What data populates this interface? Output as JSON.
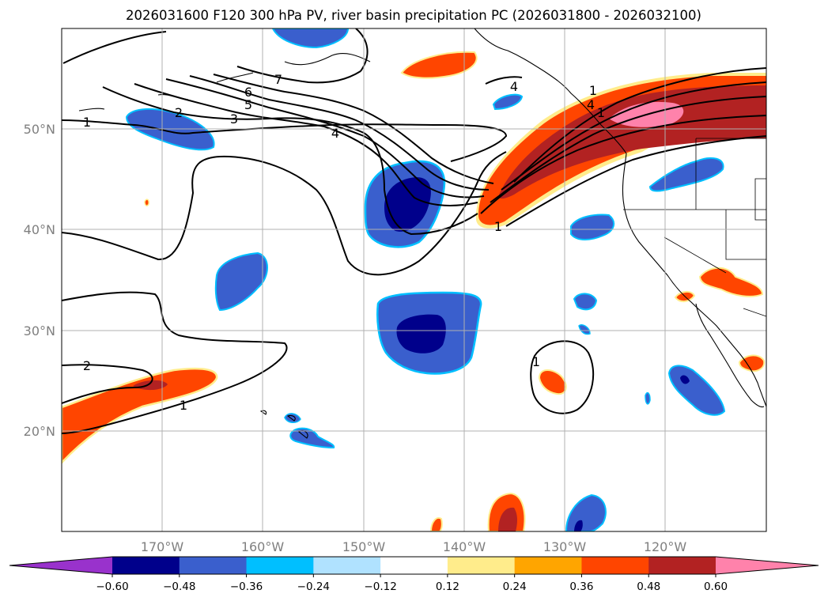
{
  "figure": {
    "title": "2026031600 F120 300 hPa PV, river basin precipitation PC (2026031800 - 2026032100)"
  },
  "map": {
    "lon_range": [
      -180,
      -110
    ],
    "lat_range": [
      10,
      60
    ],
    "longitude_labels": [
      "170°W",
      "160°W",
      "150°W",
      "140°W",
      "130°W",
      "120°W"
    ],
    "latitude_labels": [
      "50°N",
      "40°N",
      "30°N",
      "20°N"
    ],
    "gridlines": true
  },
  "contours": {
    "labels": [
      "1",
      "2",
      "3",
      "4",
      "5",
      "6",
      "7",
      "4",
      "4",
      "1",
      "1",
      "1",
      "2",
      "1",
      "1"
    ]
  },
  "colorbar": {
    "colors": [
      "#9932cc",
      "#00008b",
      "#3a5fcd",
      "#00bfff",
      "#b0e2ff",
      "#ffffff",
      "#ffec8b",
      "#ffa500",
      "#ff4500",
      "#b22222",
      "#ff82ab"
    ],
    "tick_labels": [
      "−0.60",
      "−0.48",
      "−0.36",
      "−0.24",
      "−0.12",
      "0.12",
      "0.24",
      "0.36",
      "0.48",
      "0.60"
    ]
  }
}
